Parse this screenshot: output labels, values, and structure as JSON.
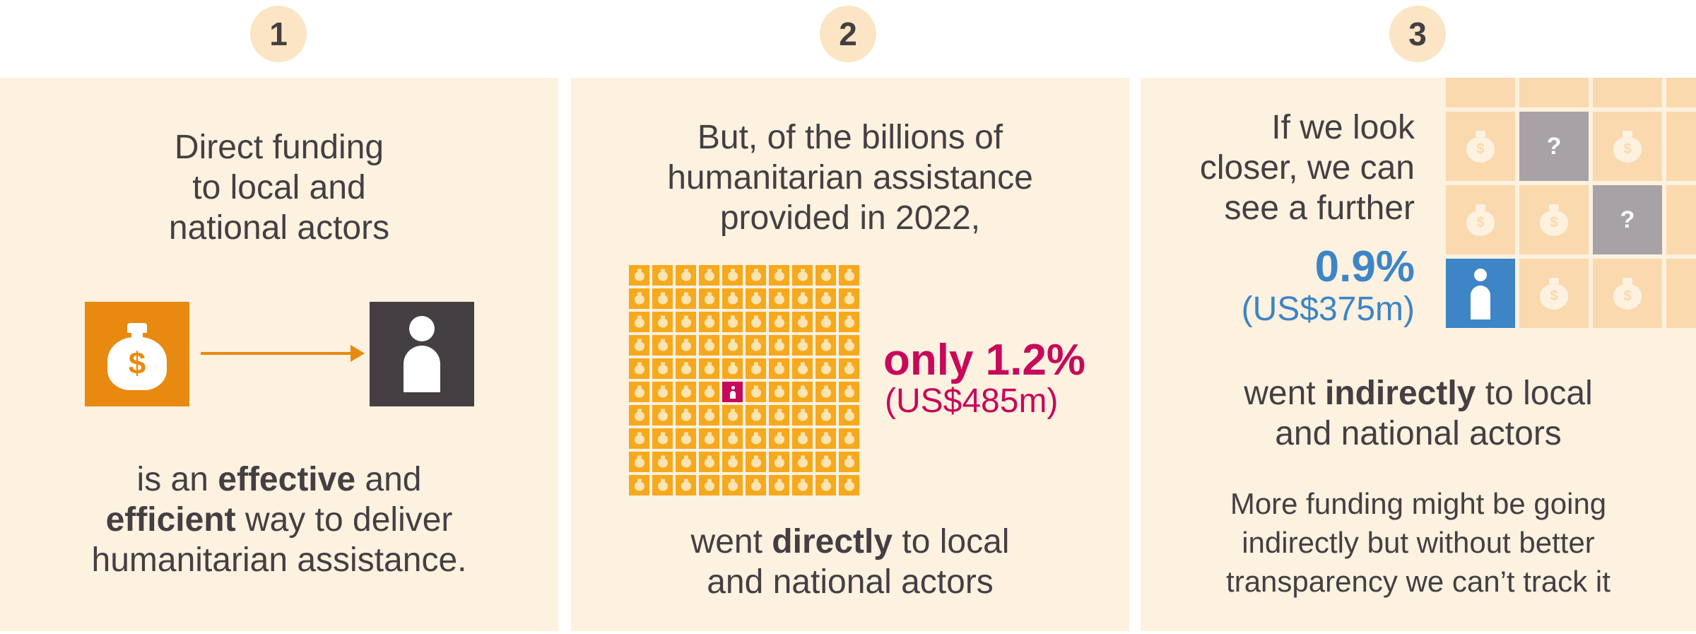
{
  "steps": [
    {
      "number": "1",
      "heading": [
        "Direct funding",
        "to local and",
        "national actors"
      ],
      "body": {
        "l1_a": "is an ",
        "l1_b": "effective",
        "l1_c": " and",
        "l2_a": "efficient",
        "l2_b": " way to deliver",
        "l3": "humanitarian assistance."
      }
    },
    {
      "number": "2",
      "heading": [
        "But, of the billions of",
        "humanitarian assistance",
        "provided in 2022,"
      ],
      "highlight_percent": "only 1.2%",
      "highlight_amount": "(US$485m)",
      "body": {
        "l1_a": "went ",
        "l1_b": "directly",
        "l1_c": " to local",
        "l2": "and national actors"
      }
    },
    {
      "number": "3",
      "heading": [
        "If we look",
        "closer, we can",
        "see a further"
      ],
      "highlight_percent": "0.9%",
      "highlight_amount": "(US$375m)",
      "body": {
        "l1_a": "went ",
        "l1_b": "indirectly",
        "l1_c": " to local",
        "l2": "and national actors"
      },
      "note": [
        "More funding might be going",
        "indirectly but without better",
        "transparency we can’t track it"
      ],
      "unknown_mark": "?"
    }
  ],
  "colors": {
    "panel_bg": "#fdf1e0",
    "badge_bg": "#fbe5c4",
    "text": "#443f42",
    "orange": "#e88a0f",
    "magenta": "#c8085a",
    "blue": "#3d85c6",
    "dark": "#443f42"
  },
  "icons": [
    "money-bag-icon",
    "person-icon",
    "arrow-right-icon",
    "question-icon"
  ],
  "waffle": {
    "total_cells": 100,
    "highlighted_cells": 1
  }
}
